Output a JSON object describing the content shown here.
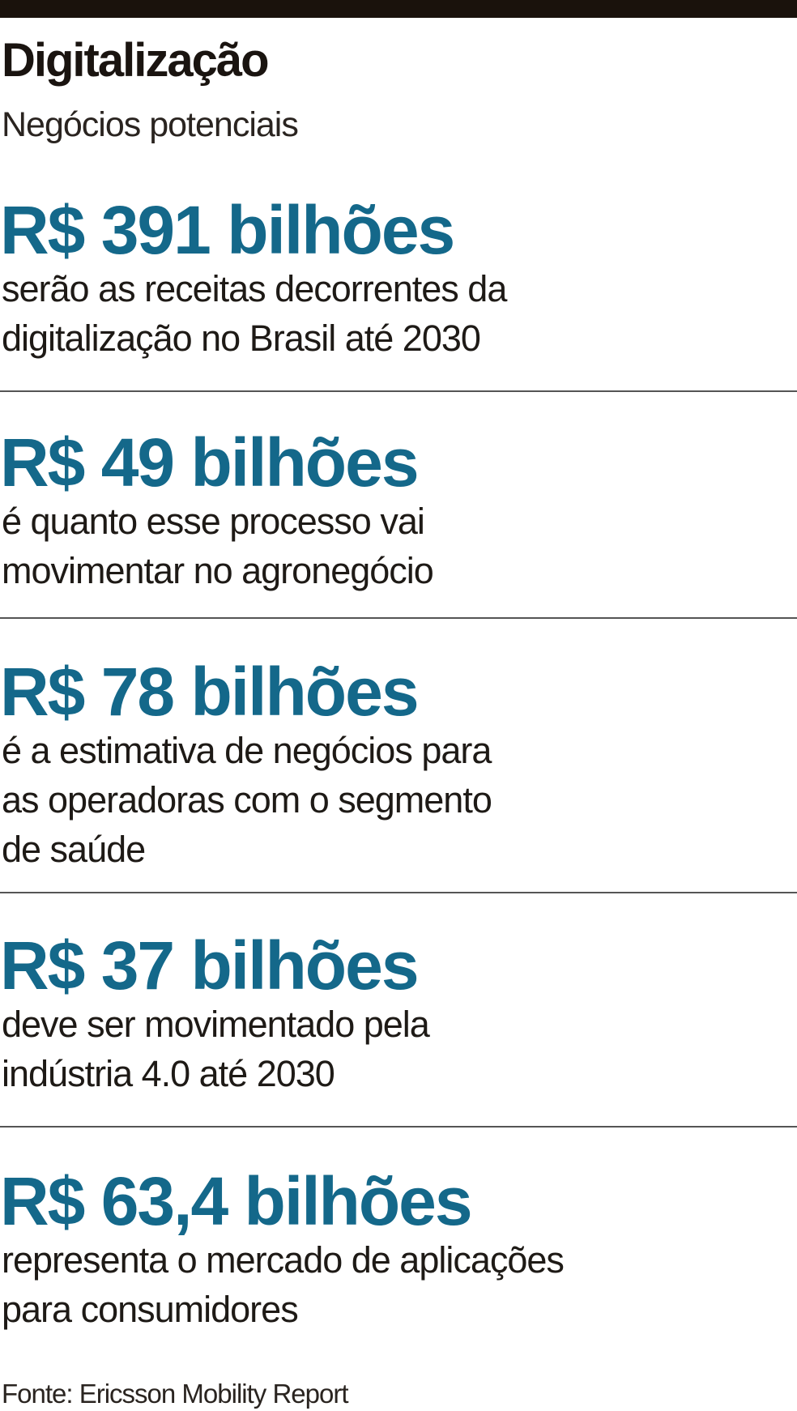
{
  "header": {
    "title": "Digitalização",
    "subtitle": "Negócios potenciais"
  },
  "items": [
    {
      "headline": "R$ 391 bilhões",
      "description_lines": [
        "serão as receitas decorrentes da",
        "digitalização no Brasil até 2030"
      ]
    },
    {
      "headline": "R$ 49 bilhões",
      "description_lines": [
        "é quanto esse processo vai",
        "movimentar no agronegócio"
      ]
    },
    {
      "headline": "R$ 78 bilhões",
      "description_lines": [
        "é a estimativa de negócios para",
        "as operadoras com o segmento",
        "de saúde"
      ]
    },
    {
      "headline": "R$ 37 bilhões",
      "description_lines": [
        "deve ser movimentado pela",
        "indústria 4.0 até 2030"
      ]
    },
    {
      "headline": "R$ 63,4 bilhões",
      "description_lines": [
        "representa o mercado de aplicações",
        "para consumidores"
      ]
    }
  ],
  "source": "Fonte: Ericsson Mobility Report"
}
